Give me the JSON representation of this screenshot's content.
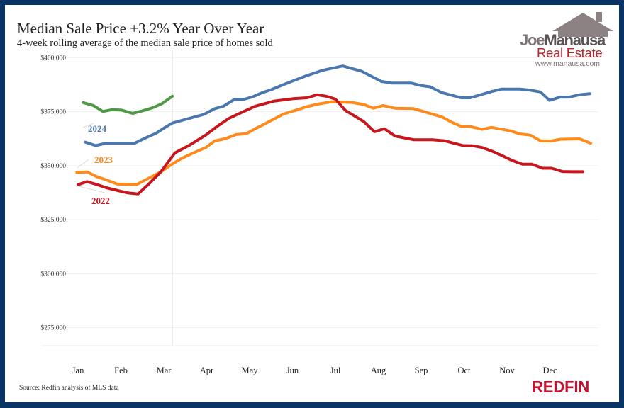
{
  "header": {
    "title": "Median Sale Price +3.2% Year Over Year",
    "subtitle": "4-week rolling average of the median sale price of homes sold"
  },
  "logo": {
    "text_part1": "Joe",
    "text_part2": "Manausa",
    "line2": "Real Estate",
    "url": "www.manausa.com"
  },
  "footer": {
    "source": "Source: Redfin analysis of MLS data",
    "brand": "REDFIN"
  },
  "colors": {
    "background_border": "#0b3466",
    "series_2022": "#c8161d",
    "series_2023": "#ff8a1c",
    "series_2024": "#4a78ae",
    "series_2025": "#4e9a44",
    "redfin": "#c8102e"
  },
  "chart_data": {
    "type": "line",
    "title": "Median Sale Price +3.2% Year Over Year",
    "subtitle": "4-week rolling average of the median sale price of homes sold",
    "xlabel": "",
    "ylabel": "",
    "x_tick_labels": [
      "Jan",
      "Feb",
      "Mar",
      "Apr",
      "May",
      "Jun",
      "Jul",
      "Aug",
      "Sep",
      "Oct",
      "Nov",
      "Dec"
    ],
    "x_tick_values": [
      1,
      2,
      3,
      4,
      5,
      6,
      7,
      8,
      9,
      10,
      11,
      12
    ],
    "y_tick_labels": [
      "$275,000",
      "$300,000",
      "$325,000",
      "$350,000",
      "$375,000",
      "$400,000"
    ],
    "y_tick_values": [
      275000,
      300000,
      325000,
      350000,
      375000,
      400000
    ],
    "xlim": [
      0.7,
      13.15
    ],
    "ylim": [
      266700,
      403700
    ],
    "grid": true,
    "legend": "inline labels",
    "series": [
      {
        "name": "2024",
        "color": "#4a78ae",
        "x": [
          1.17,
          1.41,
          1.66,
          2.32,
          2.6,
          2.82,
          3.03,
          3.2,
          3.43,
          3.93,
          4.19,
          4.39,
          4.64,
          4.85,
          5.08,
          5.3,
          5.51,
          5.74,
          6.01,
          6.34,
          6.67,
          6.79,
          7.17,
          7.61,
          8.07,
          8.32,
          8.77,
          8.98,
          9.21,
          9.48,
          9.93,
          10.14,
          10.37,
          10.64,
          10.87,
          11.3,
          11.53,
          11.78,
          11.99,
          12.24,
          12.45,
          12.69,
          12.93
        ],
        "values": [
          360900,
          359300,
          360400,
          360400,
          363100,
          365000,
          367700,
          369700,
          371000,
          373700,
          376400,
          377500,
          380600,
          380600,
          381900,
          383800,
          385200,
          387100,
          389200,
          391700,
          393900,
          394500,
          396100,
          393700,
          389000,
          388200,
          388200,
          387100,
          386500,
          383800,
          381400,
          381400,
          382700,
          384300,
          385400,
          385400,
          385000,
          384100,
          380200,
          381700,
          381700,
          382800,
          383300
        ]
      },
      {
        "name": "2023",
        "color": "#ff8a1c",
        "x": [
          0.97,
          1.21,
          1.45,
          1.66,
          1.91,
          2.36,
          2.6,
          2.93,
          3.2,
          3.43,
          3.69,
          3.98,
          4.19,
          4.42,
          4.69,
          4.92,
          5.13,
          5.35,
          5.58,
          5.79,
          6.07,
          6.34,
          6.62,
          6.9,
          7.17,
          7.41,
          7.66,
          7.89,
          8.11,
          8.39,
          8.82,
          9.05,
          9.48,
          9.71,
          9.93,
          10.14,
          10.42,
          10.64,
          11.08,
          11.3,
          11.55,
          11.78,
          12.02,
          12.24,
          12.69,
          12.95
        ],
        "values": [
          346900,
          347100,
          344800,
          343400,
          341500,
          341200,
          343700,
          347100,
          350800,
          353500,
          355900,
          358400,
          361500,
          362400,
          364400,
          364800,
          367100,
          369300,
          371700,
          373900,
          375600,
          377300,
          378600,
          379500,
          379400,
          379200,
          378300,
          376600,
          377800,
          376600,
          376400,
          375100,
          372600,
          370100,
          368200,
          368100,
          366800,
          367700,
          366100,
          364700,
          364100,
          361500,
          361400,
          362200,
          362400,
          360400
        ]
      },
      {
        "name": "2022",
        "color": "#c8161d",
        "x": [
          1.0,
          1.21,
          1.45,
          1.66,
          1.94,
          2.16,
          2.4,
          2.65,
          2.93,
          3.26,
          3.6,
          3.98,
          4.26,
          4.52,
          4.8,
          5.13,
          5.58,
          6.01,
          6.34,
          6.57,
          6.79,
          7.0,
          7.23,
          7.66,
          7.91,
          8.14,
          8.39,
          8.82,
          9.26,
          9.55,
          9.98,
          10.21,
          10.42,
          10.64,
          10.87,
          11.13,
          11.36,
          11.58,
          11.83,
          12.04,
          12.29,
          12.52,
          12.77
        ],
        "values": [
          341200,
          342600,
          341200,
          339800,
          338400,
          337400,
          336900,
          341500,
          347100,
          355900,
          359500,
          364200,
          368400,
          371900,
          374500,
          377500,
          379900,
          381000,
          381400,
          382800,
          382100,
          380800,
          375600,
          370400,
          365700,
          367100,
          363700,
          362000,
          362000,
          361500,
          359300,
          359200,
          358400,
          356800,
          354800,
          352300,
          350700,
          350700,
          348800,
          348800,
          347300,
          347200,
          347200
        ]
      },
      {
        "color": "#4e9a44",
        "x": [
          1.12,
          1.36,
          1.58,
          1.79,
          2.02,
          2.27,
          2.49,
          2.74,
          2.95,
          3.2
        ],
        "values": [
          379200,
          377800,
          375100,
          375900,
          375700,
          374200,
          375300,
          376800,
          378600,
          382100
        ]
      }
    ],
    "annotations": [
      "2024",
      "2023",
      "2022"
    ]
  }
}
